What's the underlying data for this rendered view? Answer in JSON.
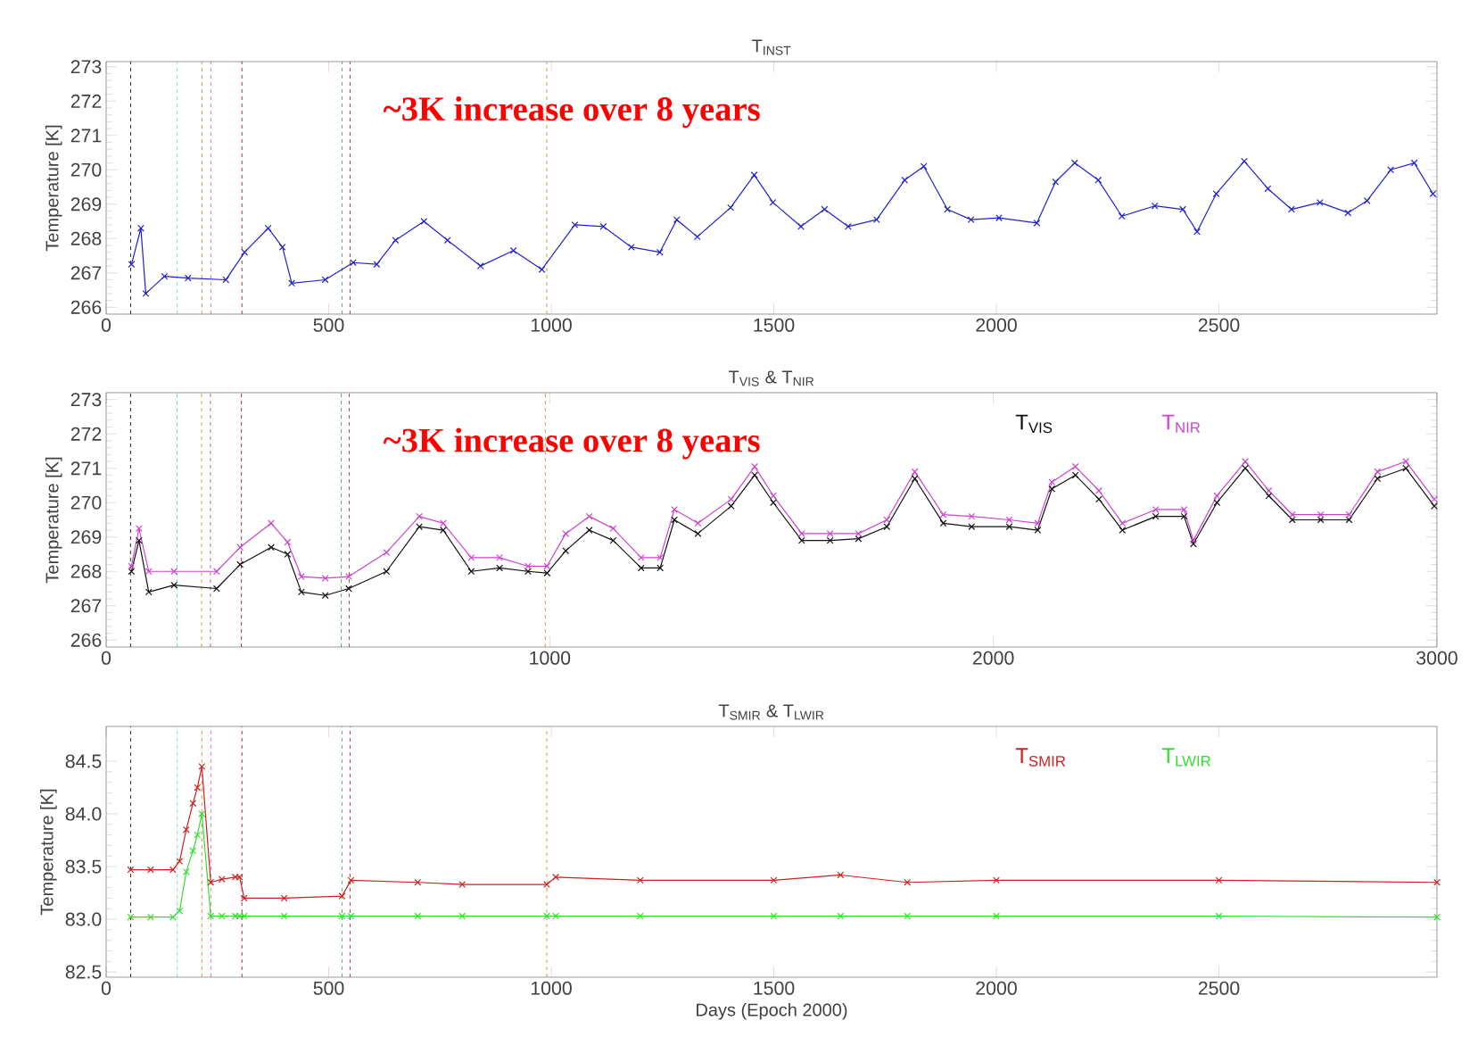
{
  "chart_data": [
    {
      "type": "line",
      "title": "T$_{INST}$",
      "ylabel": "Temperature [K]",
      "marker": "cross",
      "line_style": "solid",
      "annotations": [
        "~3K increase over 8 years"
      ],
      "xlim": [
        0,
        2990
      ],
      "ylim": [
        265.8,
        273.15
      ],
      "xticks": [
        0,
        500,
        1000,
        1500,
        2000,
        2500
      ],
      "yticks": [
        266,
        267,
        268,
        269,
        270,
        271,
        272,
        273
      ],
      "ref_lines": [
        {
          "axis": "x",
          "value": 55,
          "color": "#333333",
          "line_style": "dashed"
        },
        {
          "axis": "x",
          "value": 160,
          "color": "#66cccc",
          "line_style": "dashed"
        },
        {
          "axis": "x",
          "value": 215,
          "color": "#d4a04a",
          "line_style": "dashed"
        },
        {
          "axis": "x",
          "value": 235,
          "color": "#cc6688",
          "line_style": "dashed"
        },
        {
          "axis": "x",
          "value": 305,
          "color": "#993344",
          "line_style": "dashed"
        },
        {
          "axis": "x",
          "value": 530,
          "color": "#66aa66",
          "line_style": "dashed"
        },
        {
          "axis": "x",
          "value": 548,
          "color": "#cc4444",
          "line_style": "dashed"
        },
        {
          "axis": "x",
          "value": 990,
          "color": "#d4a04a",
          "line_style": "dashed"
        }
      ],
      "x": [
        57,
        78,
        89,
        131,
        184,
        269,
        311,
        364,
        396,
        417,
        492,
        555,
        608,
        650,
        714,
        767,
        841,
        915,
        979,
        1053,
        1117,
        1180,
        1244,
        1282,
        1328,
        1403,
        1456,
        1498,
        1561,
        1614,
        1667,
        1731,
        1794,
        1837,
        1890,
        1943,
        2006,
        2091,
        2133,
        2176,
        2229,
        2282,
        2356,
        2419,
        2451,
        2494,
        2557,
        2610,
        2663,
        2727,
        2790,
        2833,
        2886,
        2939,
        2981
      ],
      "series": [
        {
          "color": "#2222cc",
          "values": [
            267.25,
            268.3,
            266.4,
            266.9,
            266.85,
            266.8,
            267.6,
            268.3,
            267.75,
            266.7,
            266.8,
            267.3,
            267.25,
            267.95,
            268.5,
            267.95,
            267.2,
            267.65,
            267.1,
            268.4,
            268.35,
            267.75,
            267.6,
            268.55,
            268.05,
            268.9,
            269.85,
            269.05,
            268.35,
            268.85,
            268.35,
            268.55,
            269.7,
            270.1,
            268.85,
            268.55,
            268.6,
            268.45,
            269.65,
            270.2,
            269.7,
            268.65,
            268.95,
            268.85,
            268.2,
            269.3,
            270.25,
            269.45,
            268.85,
            269.05,
            268.75,
            269.1,
            270.0,
            270.2,
            269.3
          ]
        }
      ]
    },
    {
      "type": "line",
      "title": "T$_{VIS}$ & T$_{NIR}$",
      "ylabel": "Temperature [K]",
      "marker": "cross",
      "line_style": "solid",
      "legend": "top right",
      "annotations": [
        "~3K increase over 8 years"
      ],
      "xlim": [
        0,
        3000
      ],
      "ylim": [
        265.8,
        273.2
      ],
      "xticks": [
        0,
        1000,
        2000,
        3000
      ],
      "yticks": [
        266,
        267,
        268,
        269,
        270,
        271,
        272,
        273
      ],
      "ref_lines": [
        {
          "axis": "x",
          "value": 55,
          "color": "#333333",
          "line_style": "dashed"
        },
        {
          "axis": "x",
          "value": 160,
          "color": "#66cccc",
          "line_style": "dashed"
        },
        {
          "axis": "x",
          "value": 215,
          "color": "#d4a04a",
          "line_style": "dashed"
        },
        {
          "axis": "x",
          "value": 235,
          "color": "#cc6688",
          "line_style": "dashed"
        },
        {
          "axis": "x",
          "value": 305,
          "color": "#993344",
          "line_style": "dashed"
        },
        {
          "axis": "x",
          "value": 530,
          "color": "#66aa66",
          "line_style": "dashed"
        },
        {
          "axis": "x",
          "value": 548,
          "color": "#cc4444",
          "line_style": "dashed"
        },
        {
          "axis": "x",
          "value": 990,
          "color": "#d4a04a",
          "line_style": "dashed"
        }
      ],
      "x": [
        57,
        74,
        96,
        153,
        249,
        302,
        372,
        409,
        440,
        494,
        547,
        632,
        706,
        760,
        823,
        887,
        951,
        994,
        1036,
        1089,
        1143,
        1206,
        1249,
        1281,
        1334,
        1409,
        1462,
        1504,
        1568,
        1632,
        1696,
        1760,
        1823,
        1887,
        1951,
        2036,
        2100,
        2132,
        2185,
        2238,
        2291,
        2366,
        2430,
        2451,
        2504,
        2568,
        2621,
        2674,
        2738,
        2802,
        2866,
        2930,
        2994
      ],
      "series": [
        {
          "name": "T$_{VIS}$",
          "color": "#111111",
          "values": [
            268.0,
            268.9,
            267.4,
            267.6,
            267.5,
            268.2,
            268.7,
            268.5,
            267.4,
            267.3,
            267.5,
            268.0,
            269.3,
            269.2,
            268.0,
            268.1,
            268.0,
            267.95,
            268.6,
            269.2,
            268.9,
            268.1,
            268.1,
            269.5,
            269.1,
            269.9,
            270.8,
            270.0,
            268.9,
            268.9,
            268.95,
            269.3,
            270.7,
            269.4,
            269.3,
            269.3,
            269.2,
            270.4,
            270.8,
            270.1,
            269.2,
            269.6,
            269.6,
            268.8,
            270.0,
            271.0,
            270.2,
            269.5,
            269.5,
            269.5,
            270.7,
            271.0,
            269.9
          ]
        },
        {
          "name": "T$_{NIR}$",
          "color": "#cc44cc",
          "values": [
            268.15,
            269.25,
            268.0,
            268.0,
            268.0,
            268.7,
            269.4,
            268.85,
            267.85,
            267.8,
            267.85,
            268.55,
            269.6,
            269.4,
            268.4,
            268.4,
            268.15,
            268.15,
            269.1,
            269.6,
            269.25,
            268.4,
            268.4,
            269.8,
            269.4,
            270.1,
            271.05,
            270.2,
            269.1,
            269.1,
            269.1,
            269.5,
            270.9,
            269.65,
            269.6,
            269.5,
            269.4,
            270.6,
            271.05,
            270.35,
            269.4,
            269.8,
            269.8,
            268.9,
            270.2,
            271.2,
            270.35,
            269.65,
            269.65,
            269.65,
            270.9,
            271.2,
            270.1
          ]
        }
      ]
    },
    {
      "type": "line",
      "title": "T$_{SMIR}$ & T$_{LWIR}$",
      "xlabel": "Days (Epoch 2000)",
      "ylabel": "Temperature [K]",
      "marker": "cross",
      "line_style": "solid",
      "legend": "top right",
      "xlim": [
        0,
        2990
      ],
      "ylim": [
        82.45,
        84.83
      ],
      "xticks": [
        0,
        500,
        1000,
        1500,
        2000,
        2500
      ],
      "yticks": [
        {
          "value": 82.5,
          "label": "82.5"
        },
        {
          "value": 83.0,
          "label": "83.0"
        },
        {
          "value": 83.5,
          "label": "83.5"
        },
        {
          "value": 84.0,
          "label": "84.0"
        },
        {
          "value": 84.5,
          "label": "84.5"
        }
      ],
      "ref_lines": [
        {
          "axis": "x",
          "value": 55,
          "color": "#333333",
          "line_style": "dashed"
        },
        {
          "axis": "x",
          "value": 160,
          "color": "#66cccc",
          "line_style": "dashed"
        },
        {
          "axis": "x",
          "value": 215,
          "color": "#d4a04a",
          "line_style": "dashed"
        },
        {
          "axis": "x",
          "value": 235,
          "color": "#cc6688",
          "line_style": "dashed"
        },
        {
          "axis": "x",
          "value": 305,
          "color": "#993344",
          "line_style": "dashed"
        },
        {
          "axis": "x",
          "value": 530,
          "color": "#66aa66",
          "line_style": "dashed"
        },
        {
          "axis": "x",
          "value": 548,
          "color": "#cc4444",
          "line_style": "dashed"
        },
        {
          "axis": "x",
          "value": 990,
          "color": "#d4a04a",
          "line_style": "dashed"
        }
      ],
      "x": [
        55,
        100,
        150,
        165,
        180,
        195,
        205,
        215,
        235,
        260,
        290,
        300,
        310,
        400,
        530,
        550,
        700,
        800,
        990,
        1010,
        1200,
        1500,
        1650,
        1800,
        2000,
        2500,
        2990
      ],
      "series": [
        {
          "name": "T$_{SMIR}$",
          "color": "#cc2222",
          "values": [
            83.47,
            83.47,
            83.47,
            83.55,
            83.85,
            84.1,
            84.25,
            84.45,
            83.35,
            83.38,
            83.4,
            83.4,
            83.2,
            83.2,
            83.22,
            83.37,
            83.35,
            83.33,
            83.33,
            83.4,
            83.37,
            83.37,
            83.42,
            83.35,
            83.37,
            83.37,
            83.35
          ]
        },
        {
          "name": "T$_{LWIR}$",
          "color": "#33dd33",
          "values": [
            83.02,
            83.02,
            83.02,
            83.08,
            83.45,
            83.65,
            83.8,
            84.0,
            83.03,
            83.03,
            83.03,
            83.03,
            83.03,
            83.03,
            83.03,
            83.03,
            83.03,
            83.03,
            83.03,
            83.03,
            83.03,
            83.03,
            83.03,
            83.03,
            83.03,
            83.03,
            83.02
          ]
        }
      ]
    }
  ]
}
